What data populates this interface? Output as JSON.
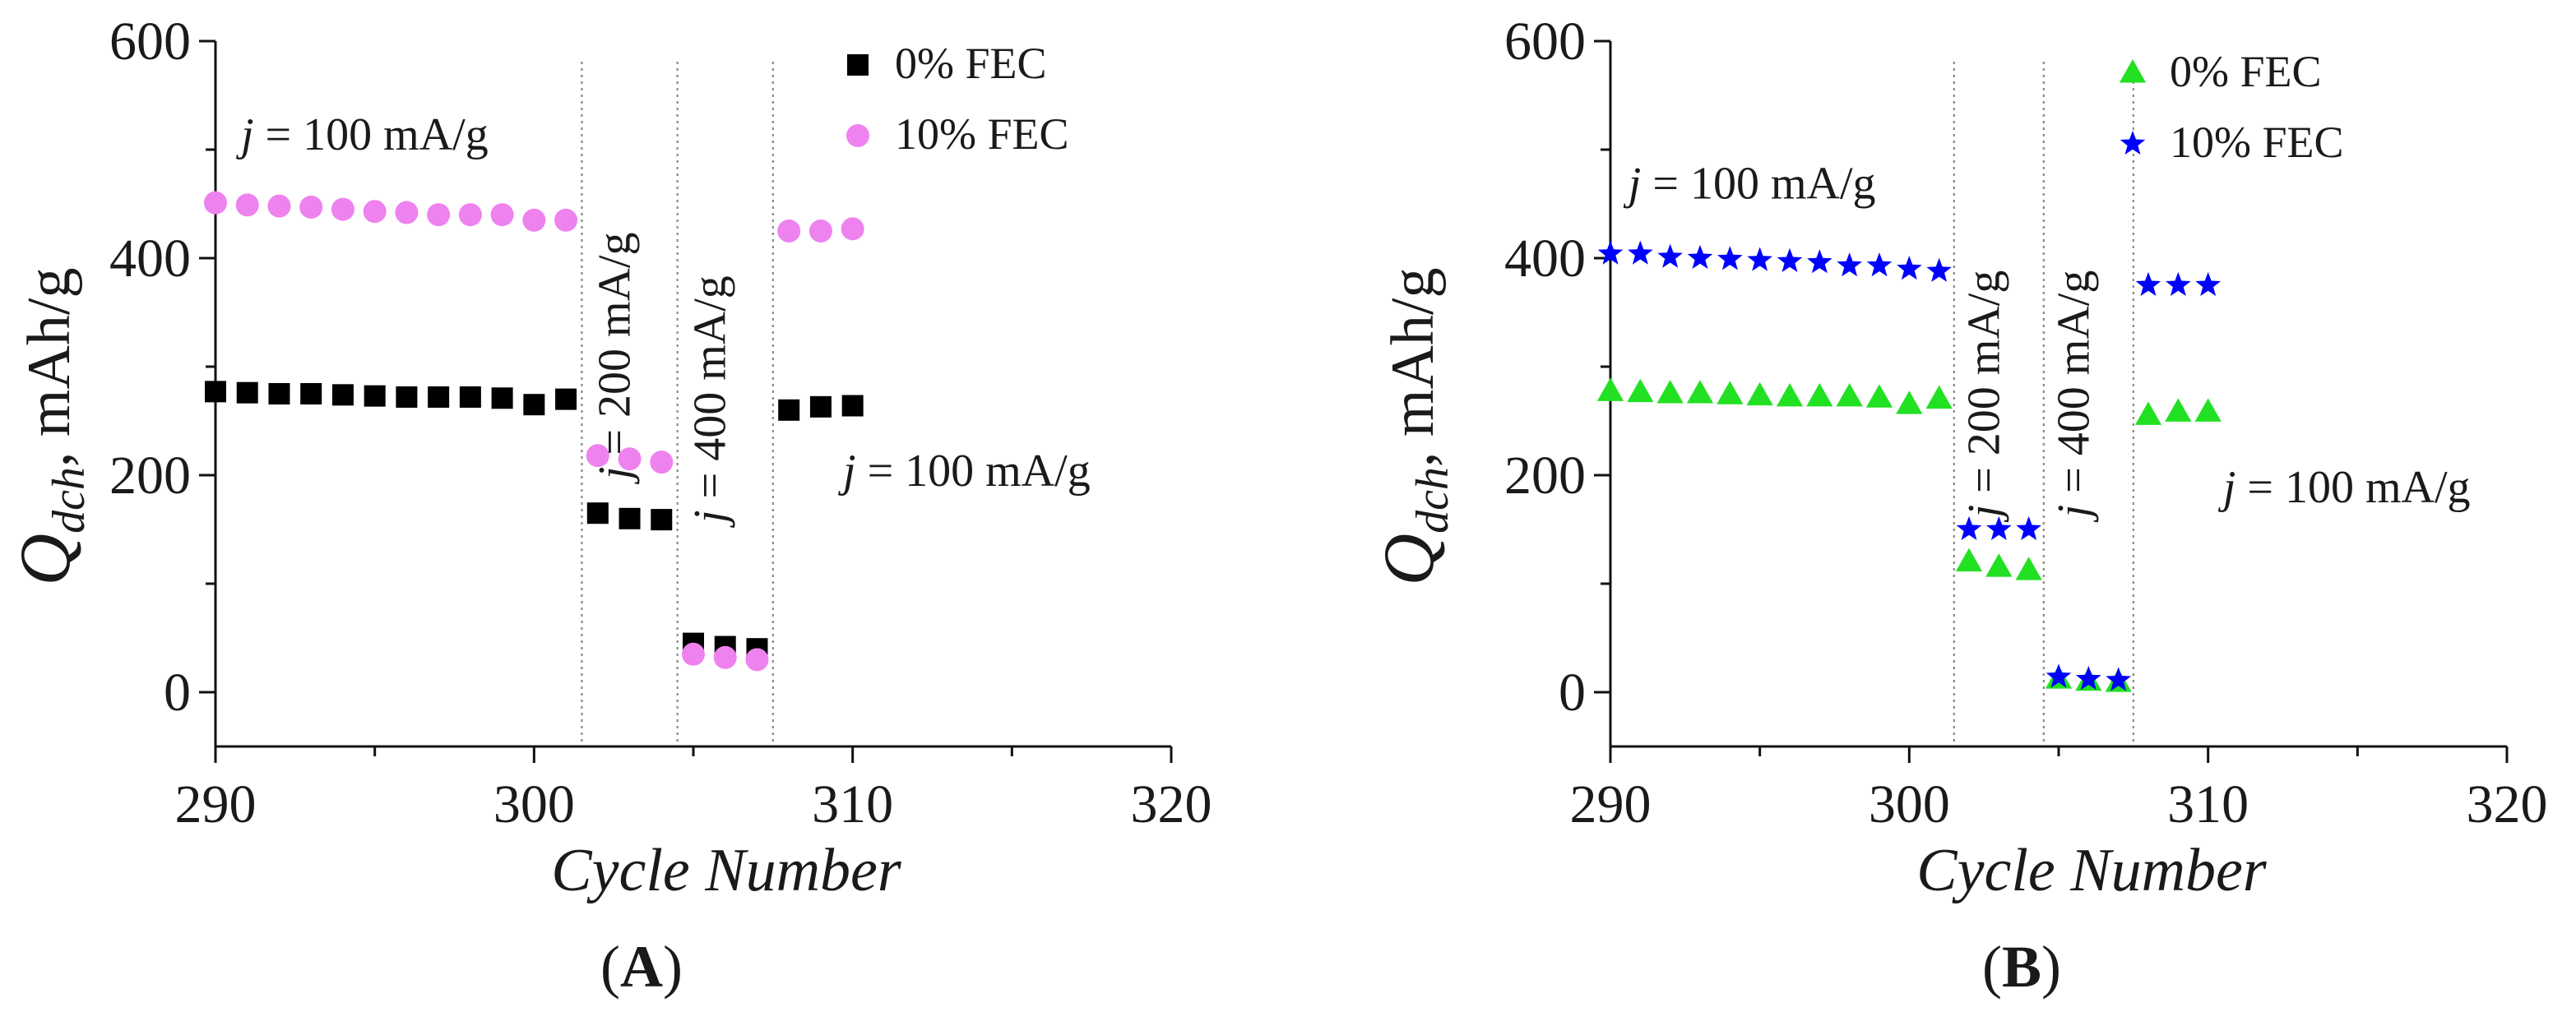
{
  "chart_data": [
    {
      "type": "scatter",
      "panel_label": "A",
      "xlabel": "Cycle Number",
      "ylabel": "Q_dch, mAh/g",
      "ylabel_main": "Q",
      "ylabel_sub": "dch",
      "ylabel_rest": ", mAh/g",
      "xlim": [
        290,
        320
      ],
      "ylim": [
        -50,
        600
      ],
      "xticks": [
        290,
        300,
        310,
        320
      ],
      "yticks": [
        0,
        200,
        400,
        600
      ],
      "dividers": [
        301.5,
        304.5,
        307.5
      ],
      "annotations": [
        {
          "j": "j",
          "rest": " = 100 mA/g",
          "x": 290.8,
          "y": 500,
          "rotate": false
        },
        {
          "j": "j",
          "rest": " = 200 mA/g",
          "x": 303.0,
          "y": 310,
          "rotate": true
        },
        {
          "j": "j",
          "rest": " = 400 mA/g",
          "x": 306.0,
          "y": 270,
          "rotate": true
        },
        {
          "j": "j",
          "rest": " = 100 mA/g",
          "x": 309.7,
          "y": 190,
          "rotate": false
        }
      ],
      "legend_position": "top-right",
      "series": [
        {
          "name": "0% FEC",
          "color": "#000000",
          "marker": "square",
          "x": [
            290,
            291,
            292,
            293,
            294,
            295,
            296,
            297,
            298,
            299,
            300,
            301,
            302,
            303,
            304,
            305,
            306,
            307,
            308,
            309,
            310
          ],
          "y": [
            277,
            276,
            275,
            275,
            274,
            273,
            272,
            272,
            272,
            271,
            265,
            270,
            165,
            160,
            159,
            45,
            42,
            40,
            260,
            263,
            264
          ]
        },
        {
          "name": "10% FEC",
          "color": "#ee82ee",
          "marker": "circle",
          "x": [
            290,
            291,
            292,
            293,
            294,
            295,
            296,
            297,
            298,
            299,
            300,
            301,
            302,
            303,
            304,
            305,
            306,
            307,
            308,
            309,
            310
          ],
          "y": [
            451,
            449,
            448,
            447,
            445,
            443,
            442,
            440,
            440,
            440,
            435,
            435,
            218,
            215,
            212,
            35,
            32,
            30,
            425,
            425,
            427
          ]
        }
      ]
    },
    {
      "type": "scatter",
      "panel_label": "B",
      "xlabel": "Cycle Number",
      "ylabel": "Q_dch, mAh/g",
      "ylabel_main": "Q",
      "ylabel_sub": "dch",
      "ylabel_rest": ", mAh/g",
      "xlim": [
        290,
        320
      ],
      "ylim": [
        -50,
        600
      ],
      "xticks": [
        290,
        300,
        310,
        320
      ],
      "yticks": [
        0,
        200,
        400,
        600
      ],
      "dividers": [
        301.5,
        304.5,
        307.5
      ],
      "annotations": [
        {
          "j": "j",
          "rest": " = 100 mA/g",
          "x": 290.6,
          "y": 455,
          "rotate": false
        },
        {
          "j": "j",
          "rest": " = 200 mA/g",
          "x": 303.0,
          "y": 275,
          "rotate": true
        },
        {
          "j": "j",
          "rest": " = 400 mA/g",
          "x": 306.0,
          "y": 275,
          "rotate": true
        },
        {
          "j": "j",
          "rest": " = 100 mA/g",
          "x": 310.5,
          "y": 175,
          "rotate": false
        }
      ],
      "legend_position": "top-right",
      "series": [
        {
          "name": "0% FEC",
          "color": "#22e022",
          "marker": "triangle",
          "x": [
            290,
            291,
            292,
            293,
            294,
            295,
            296,
            297,
            298,
            299,
            300,
            301,
            302,
            303,
            304,
            305,
            306,
            307,
            308,
            309,
            310
          ],
          "y": [
            277,
            276,
            275,
            275,
            274,
            273,
            272,
            272,
            272,
            271,
            265,
            270,
            120,
            115,
            112,
            12,
            10,
            9,
            255,
            258,
            258
          ]
        },
        {
          "name": "10% FEC",
          "color": "#0000ff",
          "marker": "star",
          "x": [
            290,
            291,
            292,
            293,
            294,
            295,
            296,
            297,
            298,
            299,
            300,
            301,
            302,
            303,
            304,
            305,
            306,
            307,
            308,
            309,
            310
          ],
          "y": [
            404,
            404,
            401,
            400,
            399,
            398,
            397,
            396,
            393,
            393,
            390,
            388,
            150,
            150,
            150,
            14,
            12,
            11,
            375,
            375,
            375
          ]
        }
      ]
    }
  ]
}
